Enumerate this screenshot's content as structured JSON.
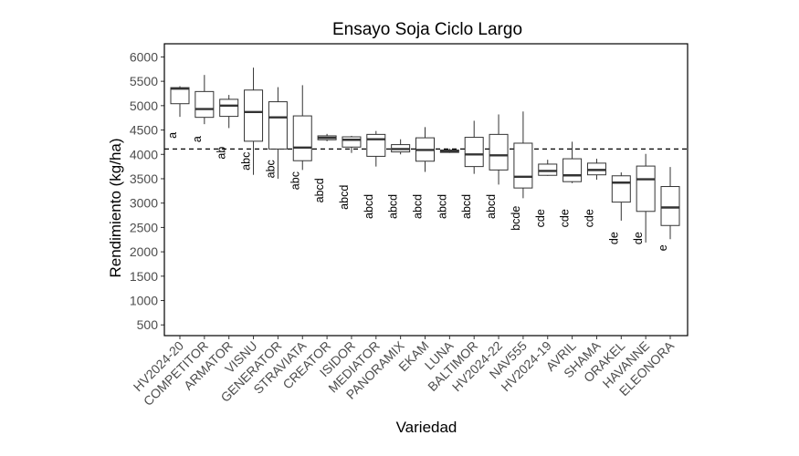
{
  "chart_data": {
    "type": "boxplot",
    "title": "Ensayo Soja Ciclo Largo",
    "xlabel": "Variedad",
    "ylabel": "Rendimiento (kg/ha)",
    "ylim": [
      280,
      6270
    ],
    "yticks": [
      500,
      1000,
      1500,
      2000,
      2500,
      3000,
      3500,
      4000,
      4500,
      5000,
      5500,
      6000
    ],
    "reference_line": 4110,
    "categories": [
      "HV2024-20",
      "COMPETITOR",
      "ARMATOR",
      "VISNU",
      "GENERATOR",
      "STRAVIATA",
      "CREATOR",
      "ISIDOR",
      "MEDIATOR",
      "PANORAMIX",
      "EKAM",
      "LUNA",
      "BALTIMOR",
      "HV2024-22",
      "NAV555",
      "HV2024-19",
      "AVRIL",
      "SHAMA",
      "ORAKEL",
      "HAVANNE",
      "ELEONORA"
    ],
    "boxes": [
      {
        "min": 4770,
        "q1": 5040,
        "median": 5350,
        "q3": 5370,
        "max": 5400,
        "group": "a",
        "group_y": 4390
      },
      {
        "min": 4620,
        "q1": 4760,
        "median": 4930,
        "q3": 5290,
        "max": 5630,
        "group": "a",
        "group_y": 4310
      },
      {
        "min": 4540,
        "q1": 4780,
        "median": 5000,
        "q3": 5130,
        "max": 5220,
        "group": "ab",
        "group_y": 4030
      },
      {
        "min": 3580,
        "q1": 4270,
        "median": 4870,
        "q3": 5320,
        "max": 5780,
        "group": "abc",
        "group_y": 3860
      },
      {
        "min": 3500,
        "q1": 4110,
        "median": 4760,
        "q3": 5080,
        "max": 5380,
        "group": "abc",
        "group_y": 3700
      },
      {
        "min": 3680,
        "q1": 3870,
        "median": 4140,
        "q3": 4790,
        "max": 5420,
        "group": "abc",
        "group_y": 3460
      },
      {
        "min": 4270,
        "q1": 4300,
        "median": 4340,
        "q3": 4380,
        "max": 4420,
        "group": "abcd",
        "group_y": 3260
      },
      {
        "min": 4030,
        "q1": 4150,
        "median": 4300,
        "q3": 4360,
        "max": 4380,
        "group": "abcd",
        "group_y": 3120
      },
      {
        "min": 3750,
        "q1": 3960,
        "median": 4310,
        "q3": 4410,
        "max": 4480,
        "group": "abcd",
        "group_y": 2930
      },
      {
        "min": 4000,
        "q1": 4050,
        "median": 4110,
        "q3": 4200,
        "max": 4310,
        "group": "abcd",
        "group_y": 2930
      },
      {
        "min": 3640,
        "q1": 3860,
        "median": 4090,
        "q3": 4340,
        "max": 4560,
        "group": "abcd",
        "group_y": 2930
      },
      {
        "min": 4030,
        "q1": 4040,
        "median": 4060,
        "q3": 4090,
        "max": 4120,
        "group": "abcd",
        "group_y": 2930
      },
      {
        "min": 3600,
        "q1": 3750,
        "median": 4000,
        "q3": 4350,
        "max": 4690,
        "group": "abcd",
        "group_y": 2930
      },
      {
        "min": 3380,
        "q1": 3680,
        "median": 3980,
        "q3": 4410,
        "max": 4820,
        "group": "abcd",
        "group_y": 2930
      },
      {
        "min": 3100,
        "q1": 3310,
        "median": 3540,
        "q3": 4230,
        "max": 4880,
        "group": "bcde",
        "group_y": 2690
      },
      {
        "min": 3560,
        "q1": 3570,
        "median": 3660,
        "q3": 3800,
        "max": 3890,
        "group": "cde",
        "group_y": 2690
      },
      {
        "min": 3410,
        "q1": 3440,
        "median": 3570,
        "q3": 3910,
        "max": 4260,
        "group": "cde",
        "group_y": 2690
      },
      {
        "min": 3480,
        "q1": 3580,
        "median": 3680,
        "q3": 3820,
        "max": 3910,
        "group": "cde",
        "group_y": 2690
      },
      {
        "min": 2640,
        "q1": 3020,
        "median": 3420,
        "q3": 3560,
        "max": 3630,
        "group": "de",
        "group_y": 2280
      },
      {
        "min": 2190,
        "q1": 2830,
        "median": 3490,
        "q3": 3760,
        "max": 4010,
        "group": "de",
        "group_y": 2280
      },
      {
        "min": 2260,
        "q1": 2540,
        "median": 2910,
        "q3": 3340,
        "max": 3740,
        "group": "e",
        "group_y": 2080
      }
    ]
  }
}
